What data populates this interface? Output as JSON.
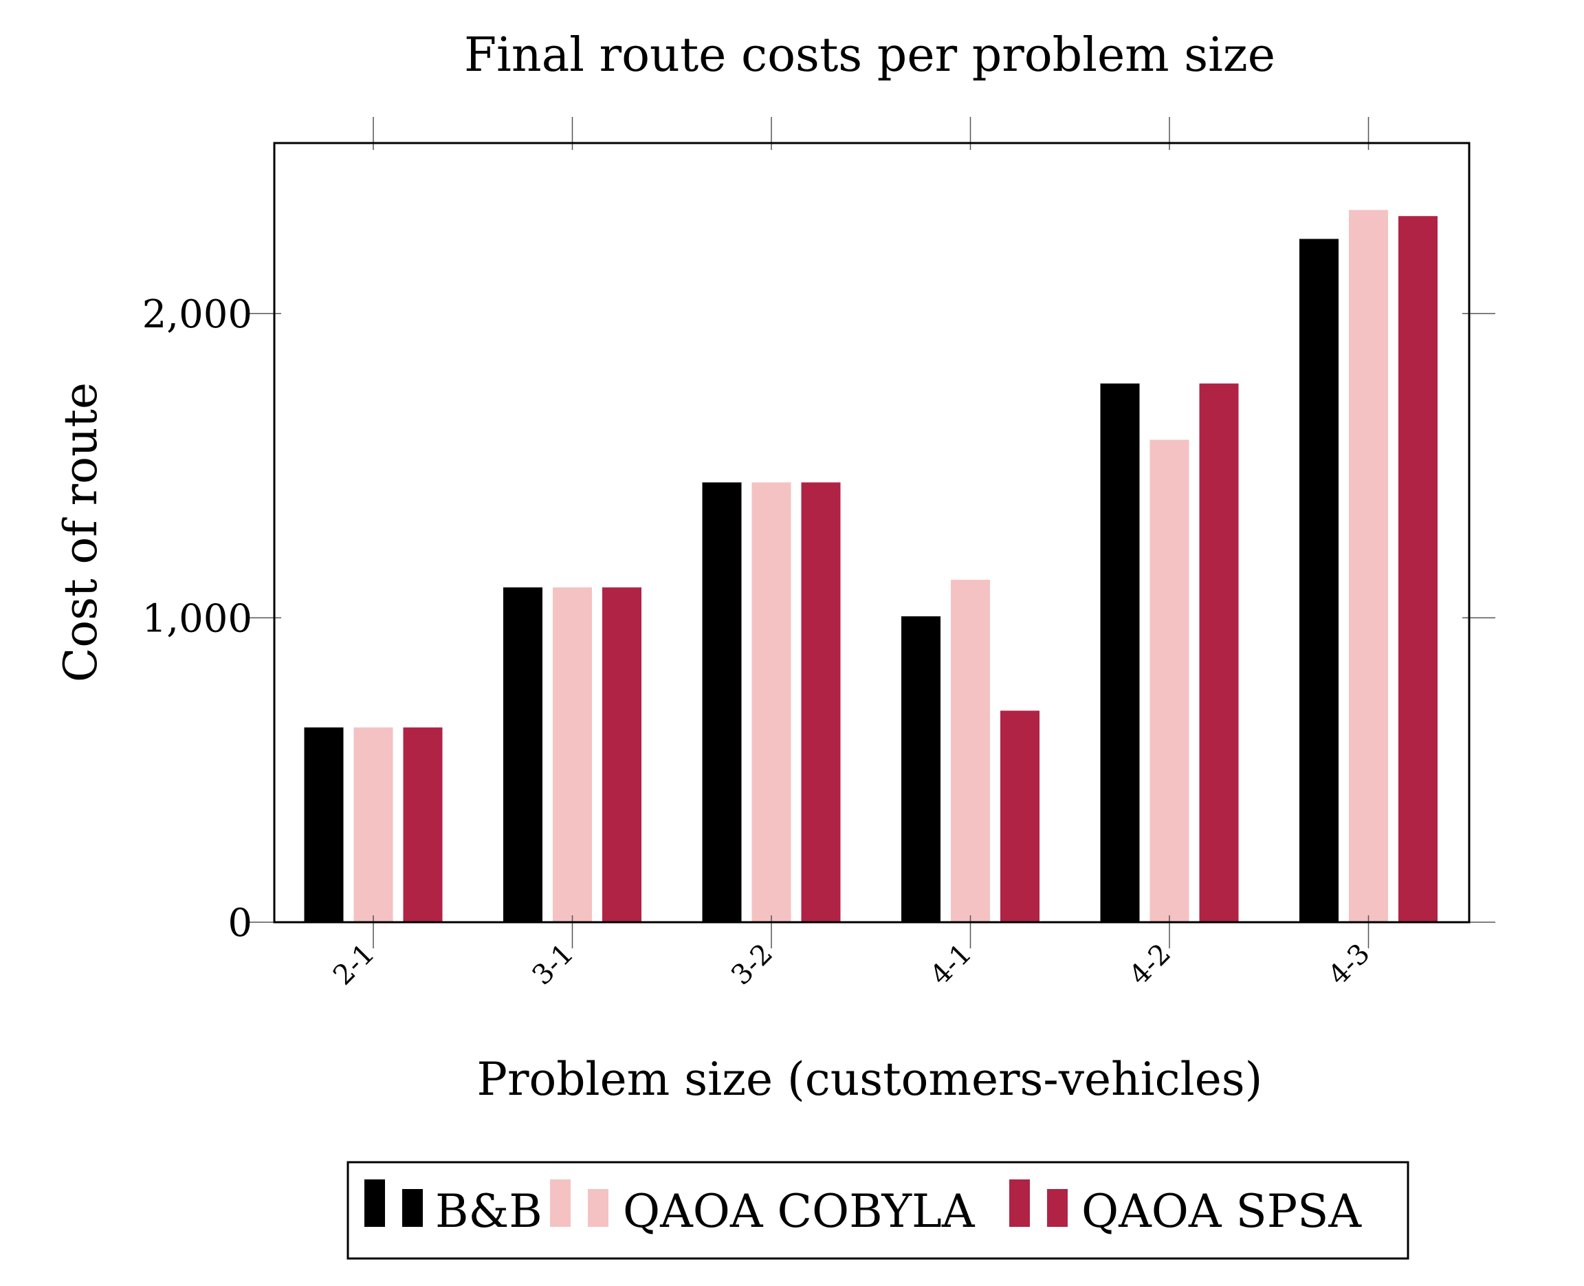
{
  "chart_data": {
    "type": "bar",
    "title": "Final route costs per problem size",
    "xlabel": "Problem size (customers-vehicles)",
    "ylabel": "Cost of route",
    "categories": [
      "2-1",
      "3-1",
      "3-2",
      "4-1",
      "4-2",
      "4-3"
    ],
    "ylim": [
      0,
      2560
    ],
    "yticks": [
      0,
      1000,
      2000
    ],
    "ytick_labels": [
      "0",
      "1,000",
      "2,000"
    ],
    "grid": false,
    "legend_position": "bottom",
    "series": [
      {
        "name": "B&B",
        "color": "#000000",
        "values": [
          640,
          1100,
          1445,
          1005,
          1770,
          2245
        ]
      },
      {
        "name": "QAOA COBYLA",
        "color": "#f4c2c2",
        "values": [
          640,
          1100,
          1445,
          1125,
          1585,
          2340
        ]
      },
      {
        "name": "QAOA SPSA",
        "color": "#b02344",
        "values": [
          640,
          1100,
          1445,
          695,
          1770,
          2320
        ]
      }
    ]
  }
}
